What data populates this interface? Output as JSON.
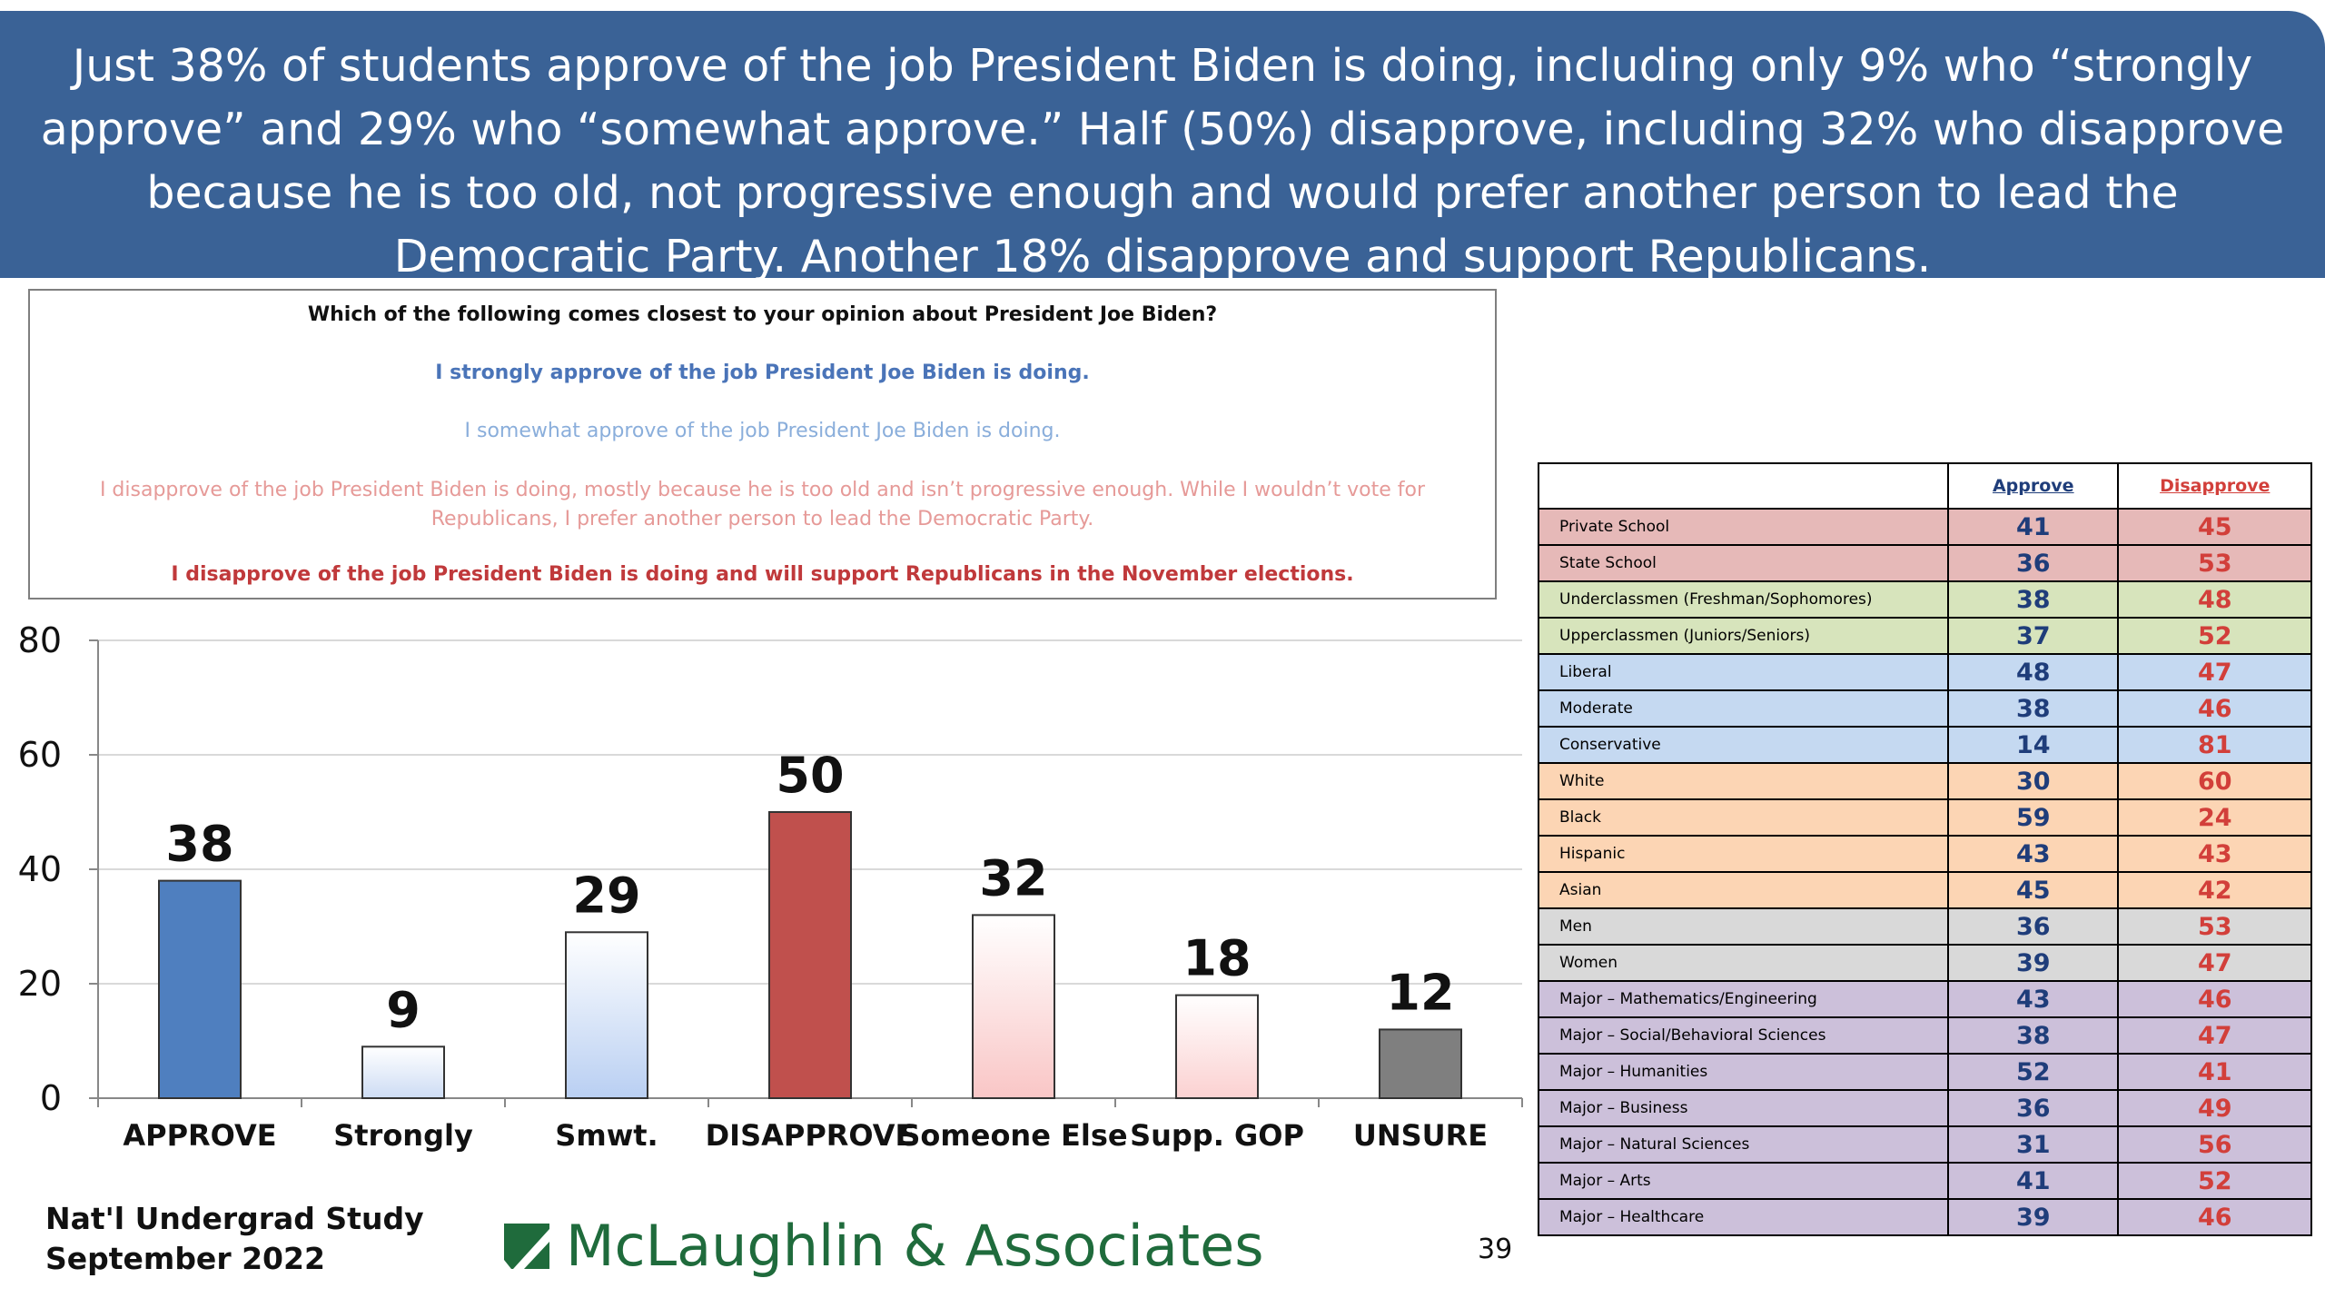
{
  "header": {
    "text": "Just 38% of students approve of the job President Biden is doing, including only 9% who “strongly approve” and 29% who “somewhat approve.” Half (50%) disapprove, including 32% who disapprove because he is too old, not progressive enough and would prefer another person to lead the Democratic Party. Another 18% disapprove and support Republicans."
  },
  "question": {
    "prompt": "Which of the following comes closest to your opinion about President Joe Biden?",
    "options": [
      {
        "text": "I strongly approve of the job President Joe Biden is doing.",
        "color": "#4a74b8"
      },
      {
        "text": "I somewhat approve of the job President Joe Biden is doing.",
        "color": "#8aaedb"
      },
      {
        "text": "I disapprove of the job President Biden is doing, mostly because he is too old and isn’t  progressive enough. While I wouldn’t vote for Republicans, I prefer another person to lead the Democratic Party.",
        "color": "#e69a98"
      },
      {
        "text": "I disapprove of the job President Biden is doing and will support Republicans in the November elections.",
        "color": "#c0393b"
      }
    ]
  },
  "chart_data": {
    "type": "bar",
    "categories": [
      "APPROVE",
      "Strongly",
      "Smwt.",
      "DISAPPROVE",
      "Someone Else",
      "Supp. GOP",
      "UNSURE"
    ],
    "values": [
      38,
      9,
      29,
      50,
      32,
      18,
      12
    ],
    "ylim": [
      0,
      80
    ],
    "yticks": [
      0,
      20,
      40,
      60,
      80
    ],
    "grid": true,
    "colors": [
      "#4f7fbf",
      "#cddcf4",
      "#b9cff2",
      "#c0504d",
      "#f9c6c6",
      "#fbd1d1",
      "#7f7f7f"
    ]
  },
  "table": {
    "headers": [
      "",
      "Approve",
      "Disapprove"
    ],
    "rows": [
      {
        "label": "Private School",
        "approve": "41",
        "disapprove": "45",
        "color": "#e6b9b8"
      },
      {
        "label": "State School",
        "approve": "36",
        "disapprove": "53",
        "color": "#e6b9b8"
      },
      {
        "label": "Underclassmen (Freshman/Sophomores)",
        "approve": "38",
        "disapprove": "48",
        "color": "#d7e4bc"
      },
      {
        "label": "Upperclassmen (Juniors/Seniors)",
        "approve": "37",
        "disapprove": "52",
        "color": "#d7e4bc"
      },
      {
        "label": "Liberal",
        "approve": "48",
        "disapprove": "47",
        "color": "#c5d9f1"
      },
      {
        "label": "Moderate",
        "approve": "38",
        "disapprove": "46",
        "color": "#c5d9f1"
      },
      {
        "label": "Conservative",
        "approve": "14",
        "disapprove": "81",
        "color": "#c5d9f1"
      },
      {
        "label": "White",
        "approve": "30",
        "disapprove": "60",
        "color": "#fcd5b4"
      },
      {
        "label": "Black",
        "approve": "59",
        "disapprove": "24",
        "color": "#fcd5b4"
      },
      {
        "label": "Hispanic",
        "approve": "43",
        "disapprove": "43",
        "color": "#fcd5b4"
      },
      {
        "label": "Asian",
        "approve": "45",
        "disapprove": "42",
        "color": "#fcd5b4"
      },
      {
        "label": "Men",
        "approve": "36",
        "disapprove": "53",
        "color": "#d9d9d9"
      },
      {
        "label": "Women",
        "approve": "39",
        "disapprove": "47",
        "color": "#d9d9d9"
      },
      {
        "label": "Major – Mathematics/Engineering",
        "approve": "43",
        "disapprove": "46",
        "color": "#ccc0da"
      },
      {
        "label": "Major – Social/Behavioral Sciences",
        "approve": "38",
        "disapprove": "47",
        "color": "#ccc0da"
      },
      {
        "label": "Major – Humanities",
        "approve": "52",
        "disapprove": "41",
        "color": "#ccc0da"
      },
      {
        "label": "Major – Business",
        "approve": "36",
        "disapprove": "49",
        "color": "#ccc0da"
      },
      {
        "label": "Major – Natural Sciences",
        "approve": "31",
        "disapprove": "56",
        "color": "#ccc0da"
      },
      {
        "label": "Major – Arts",
        "approve": "41",
        "disapprove": "52",
        "color": "#ccc0da"
      },
      {
        "label": "Major – Healthcare",
        "approve": "39",
        "disapprove": "46",
        "color": "#ccc0da"
      }
    ],
    "approve_color": "#1f3d7a",
    "disapprove_color": "#d23f3a"
  },
  "footer": {
    "study": "Nat'l Undergrad Study",
    "date": "September 2022",
    "logo_text": "McLaughlin & Associates",
    "page": "39"
  }
}
